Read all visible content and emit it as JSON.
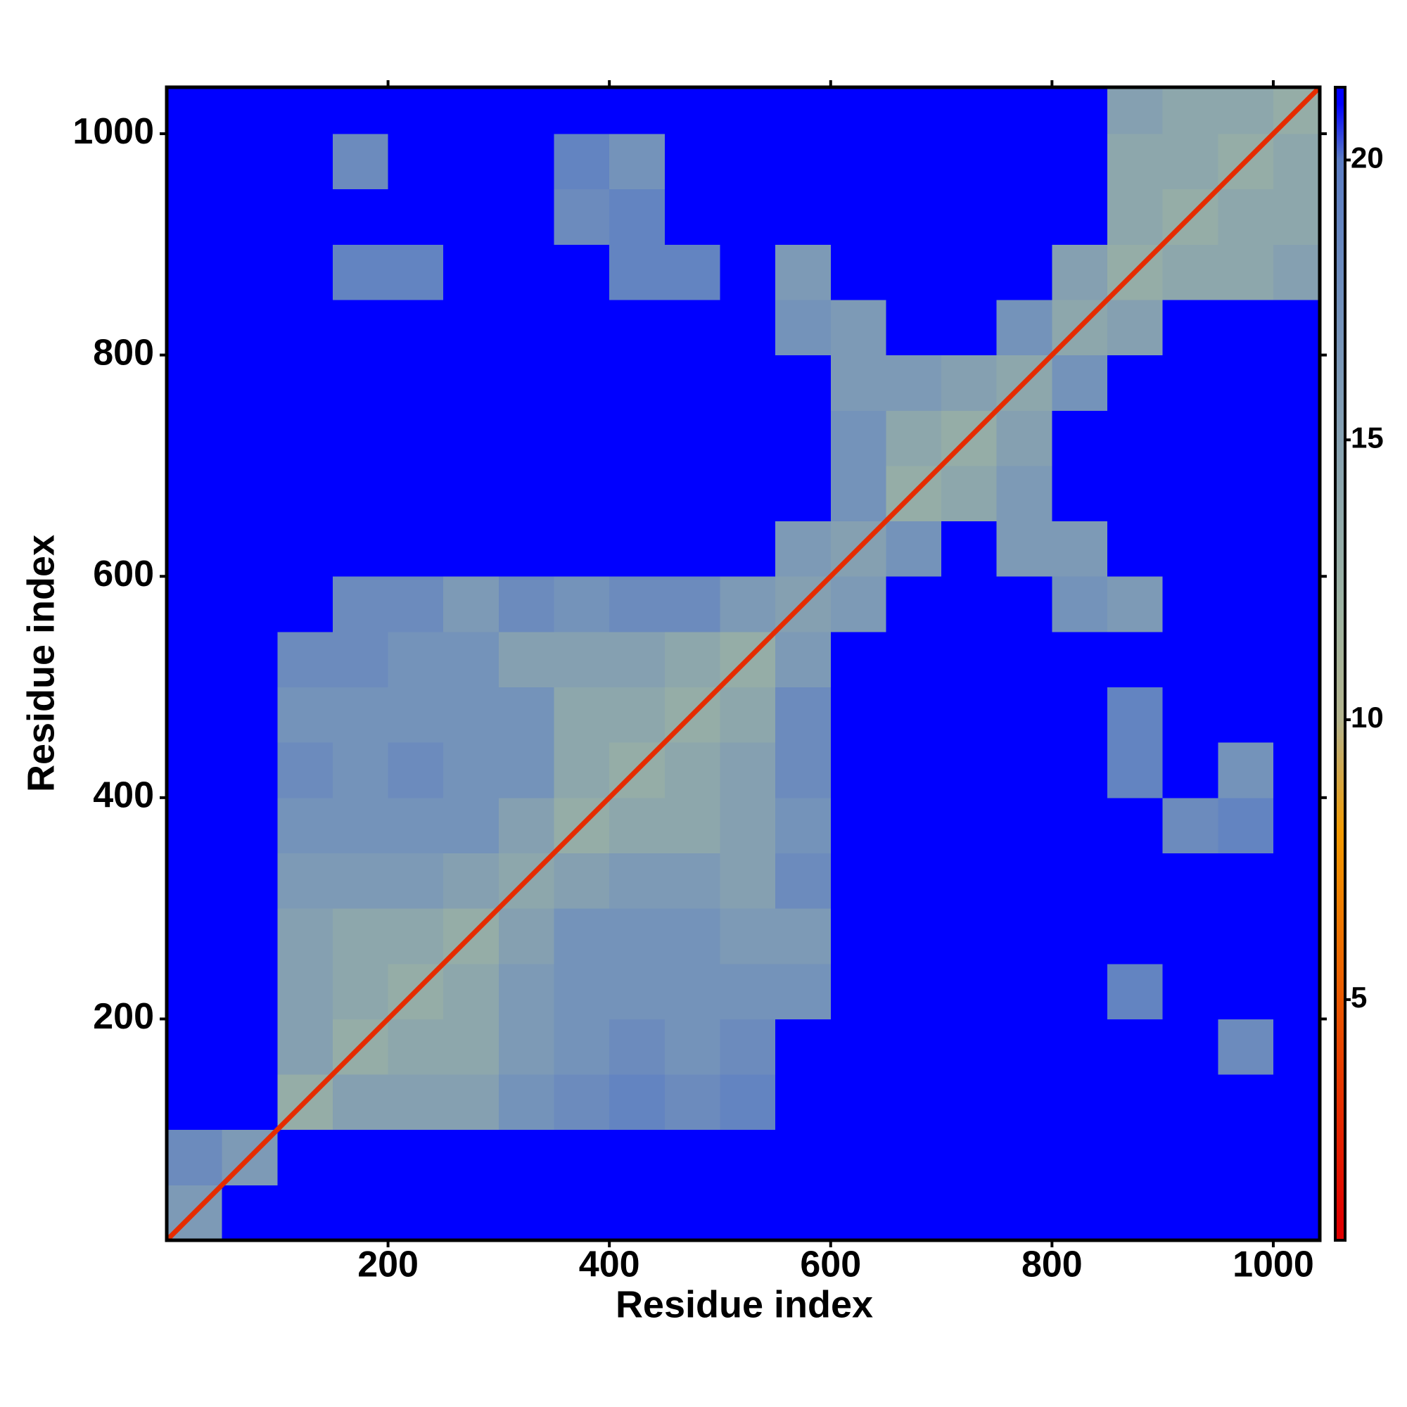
{
  "chart_data": {
    "type": "heatmap",
    "xlabel": "Residue index",
    "ylabel": "Residue index",
    "xlim": [
      0,
      1042
    ],
    "ylim": [
      0,
      1042
    ],
    "xticks": [
      200,
      400,
      600,
      800,
      1000
    ],
    "yticks": [
      200,
      400,
      600,
      800,
      1000
    ],
    "bins": [
      0,
      50,
      100,
      150,
      200,
      250,
      300,
      350,
      400,
      450,
      500,
      550,
      600,
      650,
      700,
      750,
      800,
      850,
      900,
      950,
      1000,
      1042
    ],
    "diagonal_value": 3,
    "z": [
      [
        16,
        21,
        21,
        21,
        21,
        21,
        21,
        21,
        21,
        21,
        21,
        21,
        21,
        21,
        21,
        21,
        21,
        21,
        21,
        21,
        21
      ],
      [
        18,
        16,
        21,
        21,
        21,
        21,
        21,
        21,
        21,
        21,
        21,
        21,
        21,
        21,
        21,
        21,
        21,
        21,
        21,
        21,
        21
      ],
      [
        21,
        21,
        13,
        15,
        15,
        15,
        17,
        18,
        19,
        18,
        19,
        21,
        21,
        21,
        21,
        21,
        21,
        21,
        21,
        21,
        21
      ],
      [
        21,
        21,
        15,
        13,
        14,
        14,
        16,
        17,
        18,
        17,
        18,
        21,
        21,
        21,
        21,
        21,
        21,
        21,
        21,
        18,
        21
      ],
      [
        21,
        21,
        15,
        14,
        13,
        14,
        16,
        17,
        17,
        17,
        17,
        17,
        21,
        21,
        21,
        21,
        21,
        19,
        21,
        21,
        21
      ],
      [
        21,
        21,
        15,
        14,
        14,
        13,
        15,
        17,
        17,
        17,
        16,
        16,
        21,
        21,
        21,
        21,
        21,
        21,
        21,
        21,
        21
      ],
      [
        21,
        21,
        16,
        16,
        16,
        15,
        14,
        15,
        16,
        16,
        15,
        18,
        21,
        21,
        21,
        21,
        21,
        21,
        21,
        21,
        21
      ],
      [
        21,
        21,
        17,
        17,
        17,
        17,
        15,
        13,
        14,
        14,
        15,
        17,
        21,
        21,
        21,
        21,
        21,
        21,
        18,
        19,
        21
      ],
      [
        21,
        21,
        18,
        17,
        18,
        17,
        17,
        14,
        13,
        14,
        15,
        18,
        21,
        21,
        21,
        21,
        21,
        19,
        21,
        17,
        21
      ],
      [
        21,
        21,
        17,
        17,
        17,
        17,
        17,
        14,
        14,
        13,
        14,
        18,
        21,
        21,
        21,
        21,
        21,
        19,
        21,
        21,
        21
      ],
      [
        21,
        21,
        18,
        18,
        17,
        17,
        15,
        15,
        15,
        14,
        13,
        16,
        21,
        21,
        21,
        21,
        21,
        21,
        21,
        21,
        21
      ],
      [
        21,
        21,
        21,
        18,
        18,
        16,
        18,
        17,
        18,
        18,
        16,
        15,
        16,
        21,
        21,
        21,
        17,
        16,
        21,
        21,
        21
      ],
      [
        21,
        21,
        21,
        21,
        21,
        21,
        21,
        21,
        21,
        21,
        21,
        16,
        15,
        17,
        21,
        16,
        16,
        21,
        21,
        21,
        21
      ],
      [
        21,
        21,
        21,
        21,
        21,
        21,
        21,
        21,
        21,
        21,
        21,
        21,
        17,
        13,
        14,
        16,
        21,
        21,
        21,
        21,
        21
      ],
      [
        21,
        21,
        21,
        21,
        21,
        21,
        21,
        21,
        21,
        21,
        21,
        21,
        17,
        14,
        13,
        15,
        21,
        21,
        21,
        21,
        21
      ],
      [
        21,
        21,
        21,
        21,
        21,
        21,
        21,
        21,
        21,
        21,
        21,
        21,
        16,
        16,
        15,
        14,
        17,
        21,
        21,
        21,
        21
      ],
      [
        21,
        21,
        21,
        21,
        21,
        21,
        21,
        21,
        21,
        21,
        21,
        17,
        16,
        21,
        21,
        17,
        14,
        15,
        21,
        21,
        21
      ],
      [
        21,
        21,
        21,
        19,
        19,
        21,
        21,
        21,
        19,
        19,
        21,
        16,
        21,
        21,
        21,
        21,
        15,
        13,
        14,
        14,
        15
      ],
      [
        21,
        21,
        21,
        21,
        21,
        21,
        21,
        18,
        19,
        21,
        21,
        21,
        21,
        21,
        21,
        21,
        21,
        14,
        13,
        14,
        14
      ],
      [
        21,
        21,
        21,
        18,
        21,
        21,
        21,
        19,
        17,
        21,
        21,
        21,
        21,
        21,
        21,
        21,
        21,
        14,
        14,
        13,
        14
      ],
      [
        21,
        21,
        21,
        21,
        21,
        21,
        21,
        21,
        21,
        21,
        21,
        21,
        21,
        21,
        21,
        21,
        21,
        15,
        14,
        14,
        13
      ]
    ],
    "clim": [
      0.7,
      21.3
    ],
    "cticks": [
      5,
      10,
      15,
      20
    ],
    "colorscale": [
      [
        1,
        "#e00000"
      ],
      [
        8,
        "#f29a00"
      ],
      [
        10,
        "#b3b38c"
      ],
      [
        12,
        "#9db3a2"
      ],
      [
        16,
        "#7d9ab6"
      ],
      [
        20,
        "#5a7cc4"
      ],
      [
        21,
        "#0000ff"
      ]
    ]
  }
}
